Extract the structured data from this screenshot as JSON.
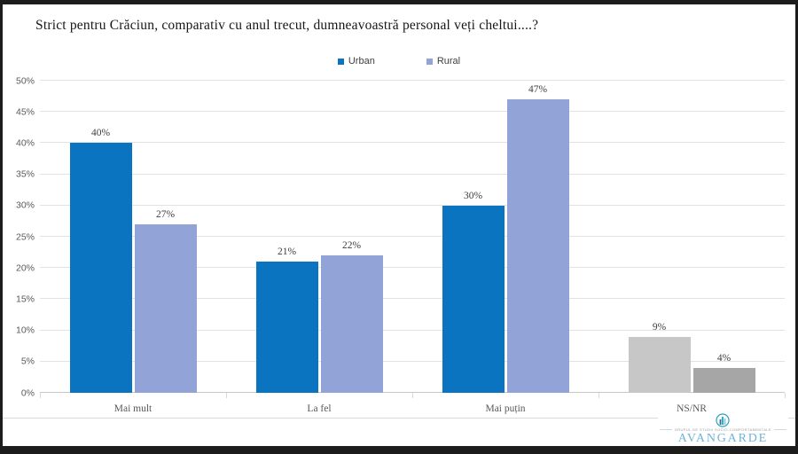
{
  "title": "Strict pentru Crăciun, comparativ cu anul trecut, dumneavoastră personal veți cheltui....?",
  "chart_data": {
    "type": "bar",
    "title": "Strict pentru Crăciun, comparativ cu anul trecut, dumneavoastră personal veți cheltui....?",
    "categories": [
      "Mai mult",
      "La fel",
      "Mai puțin",
      "NS/NR"
    ],
    "series": [
      {
        "name": "Urban",
        "color": "#0B74C0",
        "values": [
          40,
          21,
          30,
          9
        ],
        "bar_colors": [
          "#0B74C0",
          "#0B74C0",
          "#0B74C0",
          "#C7C7C7"
        ]
      },
      {
        "name": "Rural",
        "color": "#91A3D7",
        "values": [
          27,
          22,
          47,
          4
        ],
        "bar_colors": [
          "#91A3D7",
          "#91A3D7",
          "#91A3D7",
          "#A6A6A6"
        ]
      }
    ],
    "ylim": [
      0,
      50
    ],
    "ytick_labels": [
      "0%",
      "5%",
      "10%",
      "15%",
      "20%",
      "25%",
      "30%",
      "35%",
      "40%",
      "45%",
      "50%"
    ],
    "grid": true,
    "legend_position": "top-center",
    "value_label_format": "{v}%"
  },
  "logo": {
    "name": "AVANGARDE",
    "tagline": "GRUPUL DE STUDII SOCIO-COMPORTAMENTALE"
  },
  "colors": {
    "urban": "#0B74C0",
    "rural": "#91A3D7",
    "ns_nr_first": "#C7C7C7",
    "ns_nr_second": "#A6A6A6",
    "gridline": "#E2E2E2",
    "axis_line": "#C6C6C6",
    "divider": "#D9D9D9",
    "frame": "#1C1C1C",
    "logo_text": "#6FB3D9",
    "logo_icon": "#2E9EC0"
  }
}
